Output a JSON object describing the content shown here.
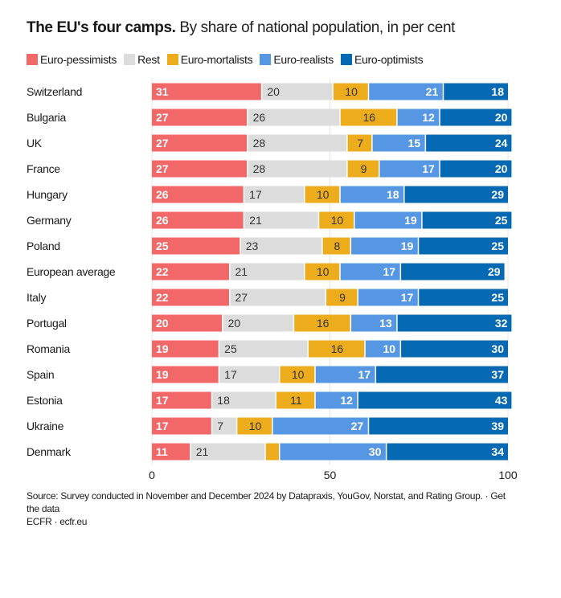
{
  "chart_data": {
    "type": "bar",
    "orientation": "horizontal",
    "stacked": true,
    "title": "The EU's four camps.",
    "subtitle": "By share of national population, in per cent",
    "xlabel": "",
    "ylabel": "",
    "xlim": [
      0,
      100
    ],
    "x_ticks": [
      0,
      50,
      100
    ],
    "grid": true,
    "legend_placement": "top",
    "categories": [
      "Switzerland",
      "Bulgaria",
      "UK",
      "France",
      "Hungary",
      "Germany",
      "Poland",
      "European average",
      "Italy",
      "Portugal",
      "Romania",
      "Spain",
      "Estonia",
      "Ukraine",
      "Denmark"
    ],
    "series": [
      {
        "name": "Euro-pessimists",
        "color": "#f26767",
        "label_color": "#ffffff",
        "values": [
          31,
          27,
          27,
          27,
          26,
          26,
          25,
          22,
          22,
          20,
          19,
          19,
          17,
          17,
          11
        ]
      },
      {
        "name": "Rest",
        "color": "#dcdcdc",
        "label_color": "#333333",
        "values": [
          20,
          26,
          28,
          28,
          17,
          21,
          23,
          21,
          27,
          20,
          25,
          17,
          18,
          7,
          21
        ]
      },
      {
        "name": "Euro-mortalists",
        "color": "#ecac1c",
        "label_color": "#333333",
        "values": [
          10,
          16,
          7,
          9,
          10,
          10,
          8,
          10,
          9,
          16,
          16,
          10,
          11,
          10,
          4
        ]
      },
      {
        "name": "Euro-realists",
        "color": "#5597e2",
        "label_color": "#ffffff",
        "values": [
          21,
          12,
          15,
          17,
          18,
          19,
          19,
          17,
          17,
          13,
          10,
          17,
          12,
          27,
          30
        ]
      },
      {
        "name": "Euro-optimists",
        "color": "#0669b3",
        "label_color": "#ffffff",
        "values": [
          18,
          20,
          24,
          20,
          29,
          25,
          25,
          29,
          25,
          32,
          30,
          37,
          43,
          39,
          34
        ]
      }
    ],
    "hidden_labels": [
      {
        "category": "Denmark",
        "series": "Euro-mortalists"
      }
    ]
  },
  "footer": {
    "source": "Source: Survey conducted in November and December 2024 by Datapraxis, YouGov, Norstat, and Rating Group.",
    "separator": " · ",
    "get_data_link": "Get the data",
    "credit": "ECFR · ecfr.eu"
  }
}
